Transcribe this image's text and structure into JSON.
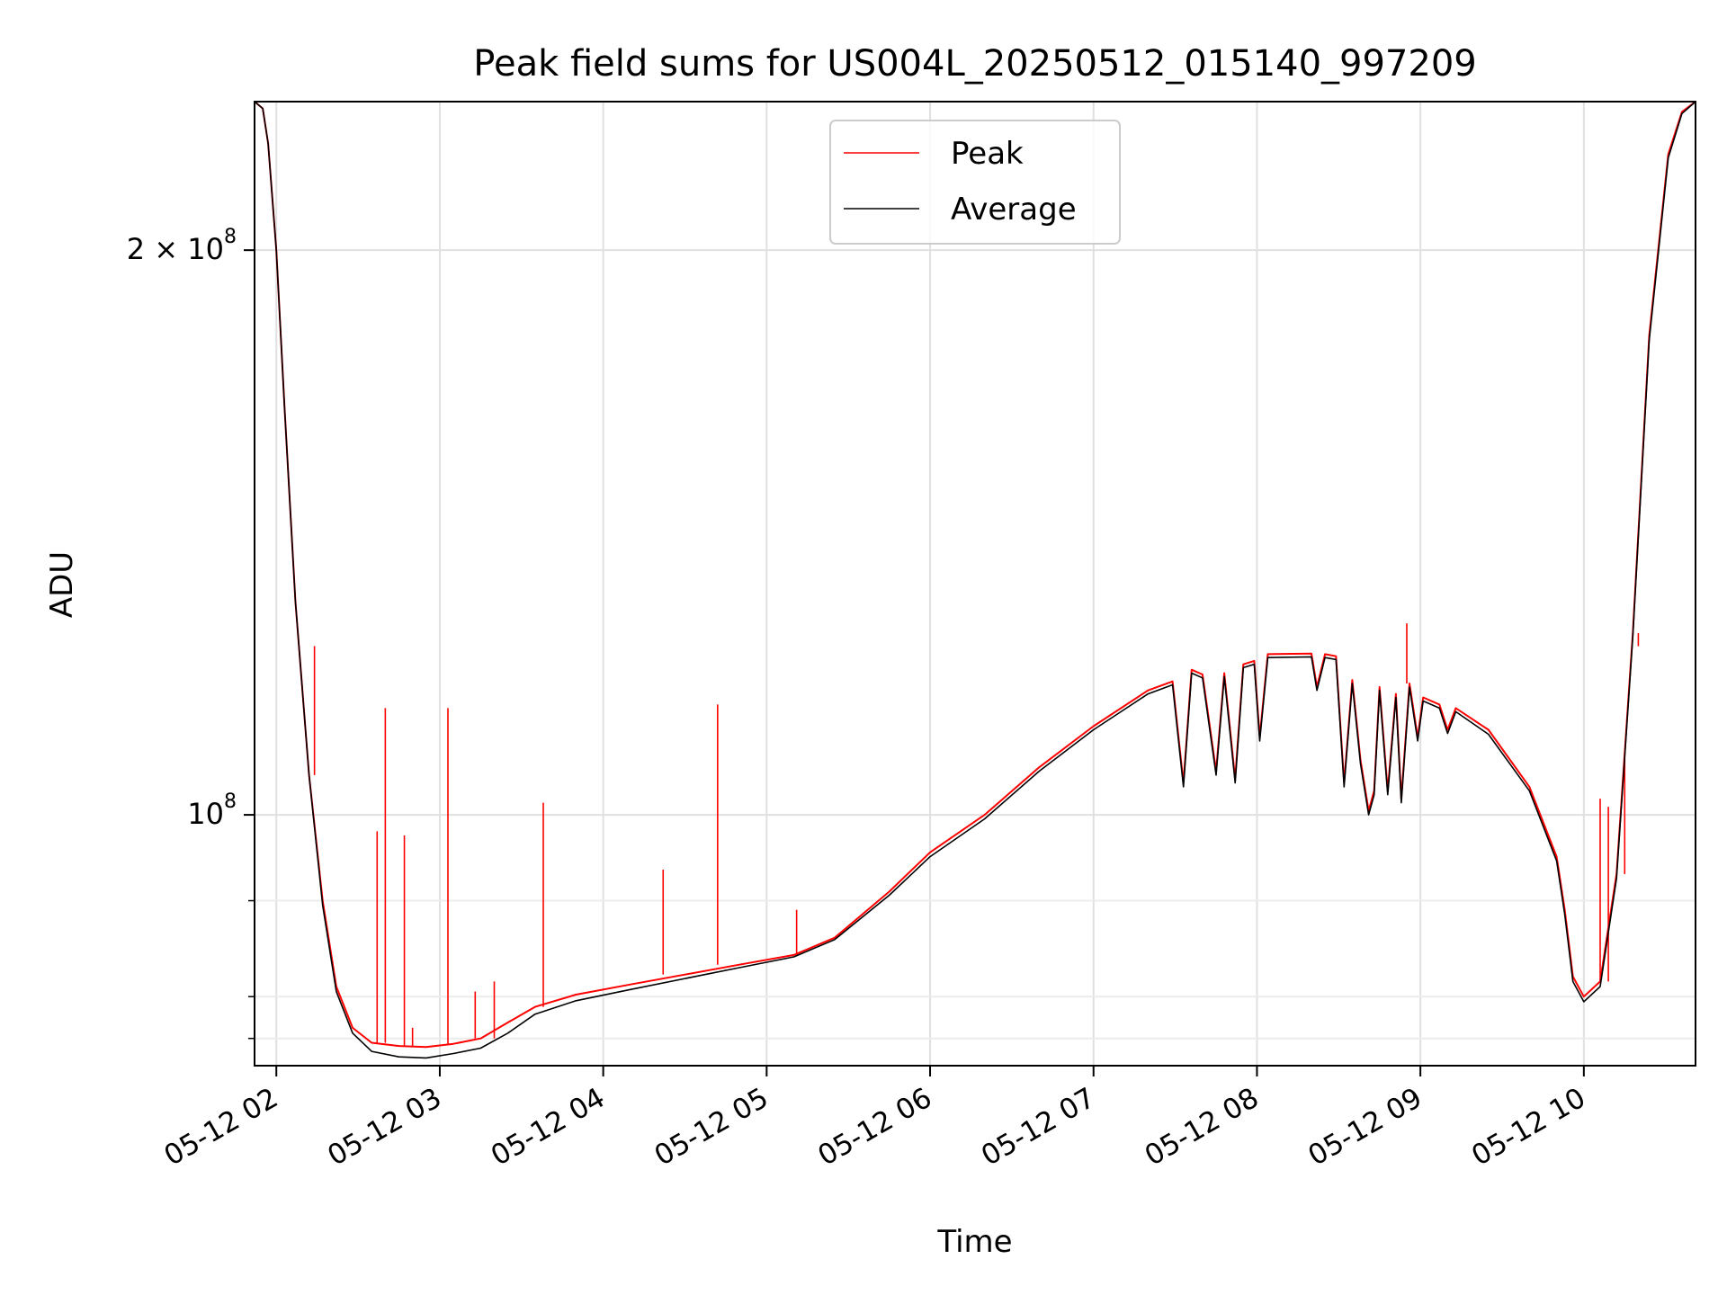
{
  "chart_data": {
    "type": "line",
    "title": "Peak field sums for US004L_20250512_015140_997209",
    "xlabel": "Time",
    "ylabel": "ADU",
    "y_scale": "log",
    "grid": true,
    "legend_position": "top-center",
    "xlim": [
      "2025-05-12 01:52",
      "2025-05-12 10:41"
    ],
    "ylim": [
      73500000,
      240000000
    ],
    "x_ticks": [
      {
        "value": "2025-05-12 02:00",
        "label": "05-12 02"
      },
      {
        "value": "2025-05-12 03:00",
        "label": "05-12 03"
      },
      {
        "value": "2025-05-12 04:00",
        "label": "05-12 04"
      },
      {
        "value": "2025-05-12 05:00",
        "label": "05-12 05"
      },
      {
        "value": "2025-05-12 06:00",
        "label": "05-12 06"
      },
      {
        "value": "2025-05-12 07:00",
        "label": "05-12 07"
      },
      {
        "value": "2025-05-12 08:00",
        "label": "05-12 08"
      },
      {
        "value": "2025-05-12 09:00",
        "label": "05-12 09"
      },
      {
        "value": "2025-05-12 10:00",
        "label": "05-12 10"
      }
    ],
    "y_major_ticks": [
      {
        "value": 100000000,
        "label": "10",
        "exp": "8"
      },
      {
        "value": 200000000,
        "label": "2 × 10",
        "exp": "8"
      }
    ],
    "y_minor_ticks": [
      76000000,
      80000000,
      90000000
    ],
    "series": [
      {
        "name": "Peak",
        "color": "#ff0000",
        "points": [
          [
            "2025-05-12 01:52",
            240000000
          ],
          [
            "2025-05-12 01:55",
            238000000
          ],
          [
            "2025-05-12 01:57",
            228000000
          ],
          [
            "2025-05-12 02:00",
            200000000
          ],
          [
            "2025-05-12 02:03",
            165000000
          ],
          [
            "2025-05-12 02:07",
            130000000
          ],
          [
            "2025-05-12 02:12",
            105000000
          ],
          [
            "2025-05-12 02:17",
            90000000
          ],
          [
            "2025-05-12 02:22",
            81000000
          ],
          [
            "2025-05-12 02:28",
            77000000
          ],
          [
            "2025-05-12 02:35",
            75600000
          ],
          [
            "2025-05-12 02:45",
            75300000
          ],
          [
            "2025-05-12 02:55",
            75200000
          ],
          [
            "2025-05-12 03:05",
            75500000
          ],
          [
            "2025-05-12 03:15",
            76000000
          ],
          [
            "2025-05-12 03:25",
            77500000
          ],
          [
            "2025-05-12 03:35",
            79000000
          ],
          [
            "2025-05-12 03:50",
            80200000
          ],
          [
            "2025-05-12 04:10",
            81200000
          ],
          [
            "2025-05-12 04:30",
            82200000
          ],
          [
            "2025-05-12 04:50",
            83200000
          ],
          [
            "2025-05-12 05:10",
            84200000
          ],
          [
            "2025-05-12 05:25",
            86000000
          ],
          [
            "2025-05-12 05:45",
            91000000
          ],
          [
            "2025-05-12 06:00",
            95500000
          ],
          [
            "2025-05-12 06:20",
            100000000
          ],
          [
            "2025-05-12 06:40",
            106000000
          ],
          [
            "2025-05-12 07:00",
            111500000
          ],
          [
            "2025-05-12 07:20",
            116500000
          ],
          [
            "2025-05-12 07:29",
            117800000
          ],
          [
            "2025-05-12 07:33",
            104000000
          ],
          [
            "2025-05-12 07:36",
            119500000
          ],
          [
            "2025-05-12 07:40",
            118800000
          ],
          [
            "2025-05-12 07:45",
            105500000
          ],
          [
            "2025-05-12 07:48",
            119000000
          ],
          [
            "2025-05-12 07:52",
            104500000
          ],
          [
            "2025-05-12 07:55",
            120300000
          ],
          [
            "2025-05-12 07:59",
            120800000
          ],
          [
            "2025-05-12 08:01",
            110000000
          ],
          [
            "2025-05-12 08:04",
            121800000
          ],
          [
            "2025-05-12 08:20",
            121900000
          ],
          [
            "2025-05-12 08:22",
            117000000
          ],
          [
            "2025-05-12 08:25",
            121800000
          ],
          [
            "2025-05-12 08:29",
            121500000
          ],
          [
            "2025-05-12 08:32",
            104000000
          ],
          [
            "2025-05-12 08:35",
            118000000
          ],
          [
            "2025-05-12 08:38",
            107000000
          ],
          [
            "2025-05-12 08:41",
            100500000
          ],
          [
            "2025-05-12 08:43",
            103000000
          ],
          [
            "2025-05-12 08:45",
            117000000
          ],
          [
            "2025-05-12 08:48",
            103000000
          ],
          [
            "2025-05-12 08:51",
            116000000
          ],
          [
            "2025-05-12 08:53",
            102000000
          ],
          [
            "2025-05-12 08:56",
            117500000
          ],
          [
            "2025-05-12 08:59",
            110000000
          ],
          [
            "2025-05-12 09:01",
            115500000
          ],
          [
            "2025-05-12 09:07",
            114500000
          ],
          [
            "2025-05-12 09:10",
            111000000
          ],
          [
            "2025-05-12 09:13",
            114000000
          ],
          [
            "2025-05-12 09:25",
            111000000
          ],
          [
            "2025-05-12 09:40",
            103500000
          ],
          [
            "2025-05-12 09:50",
            95000000
          ],
          [
            "2025-05-12 09:53",
            89000000
          ],
          [
            "2025-05-12 09:56",
            82000000
          ],
          [
            "2025-05-12 10:00",
            80000000
          ],
          [
            "2025-05-12 10:06",
            81500000
          ],
          [
            "2025-05-12 10:12",
            93000000
          ],
          [
            "2025-05-12 10:18",
            125000000
          ],
          [
            "2025-05-12 10:24",
            180000000
          ],
          [
            "2025-05-12 10:31",
            225000000
          ],
          [
            "2025-05-12 10:36",
            237000000
          ],
          [
            "2025-05-12 10:41",
            240000000
          ]
        ],
        "spikes": [
          [
            "2025-05-12 02:14",
            123000000
          ],
          [
            "2025-05-12 02:37",
            98000000
          ],
          [
            "2025-05-12 02:40",
            114000000
          ],
          [
            "2025-05-12 02:47",
            97500000
          ],
          [
            "2025-05-12 02:50",
            77000000
          ],
          [
            "2025-05-12 03:03",
            114000000
          ],
          [
            "2025-05-12 03:13",
            80500000
          ],
          [
            "2025-05-12 03:20",
            81500000
          ],
          [
            "2025-05-12 03:38",
            101500000
          ],
          [
            "2025-05-12 04:22",
            93500000
          ],
          [
            "2025-05-12 04:42",
            114500000
          ],
          [
            "2025-05-12 05:11",
            89000000
          ],
          [
            "2025-05-12 08:55",
            126500000
          ],
          [
            "2025-05-12 10:06",
            102000000
          ],
          [
            "2025-05-12 10:09",
            101000000
          ],
          [
            "2025-05-12 10:15",
            108000000
          ],
          [
            "2025-05-12 10:20",
            123000000
          ]
        ]
      },
      {
        "name": "Average",
        "color": "#000000",
        "points": [
          [
            "2025-05-12 01:52",
            240000000
          ],
          [
            "2025-05-12 01:55",
            238000000
          ],
          [
            "2025-05-12 01:57",
            228000000
          ],
          [
            "2025-05-12 02:00",
            200000000
          ],
          [
            "2025-05-12 02:03",
            165000000
          ],
          [
            "2025-05-12 02:07",
            130000000
          ],
          [
            "2025-05-12 02:12",
            105000000
          ],
          [
            "2025-05-12 02:17",
            89500000
          ],
          [
            "2025-05-12 02:22",
            80500000
          ],
          [
            "2025-05-12 02:28",
            76500000
          ],
          [
            "2025-05-12 02:35",
            74800000
          ],
          [
            "2025-05-12 02:45",
            74300000
          ],
          [
            "2025-05-12 02:55",
            74200000
          ],
          [
            "2025-05-12 03:05",
            74600000
          ],
          [
            "2025-05-12 03:15",
            75100000
          ],
          [
            "2025-05-12 03:25",
            76500000
          ],
          [
            "2025-05-12 03:35",
            78300000
          ],
          [
            "2025-05-12 03:50",
            79600000
          ],
          [
            "2025-05-12 04:10",
            80700000
          ],
          [
            "2025-05-12 04:30",
            81800000
          ],
          [
            "2025-05-12 04:50",
            82900000
          ],
          [
            "2025-05-12 05:10",
            84000000
          ],
          [
            "2025-05-12 05:25",
            85800000
          ],
          [
            "2025-05-12 05:45",
            90600000
          ],
          [
            "2025-05-12 06:00",
            95000000
          ],
          [
            "2025-05-12 06:20",
            99500000
          ],
          [
            "2025-05-12 06:40",
            105500000
          ],
          [
            "2025-05-12 07:00",
            111000000
          ],
          [
            "2025-05-12 07:20",
            116000000
          ],
          [
            "2025-05-12 07:29",
            117300000
          ],
          [
            "2025-05-12 07:33",
            103500000
          ],
          [
            "2025-05-12 07:36",
            119000000
          ],
          [
            "2025-05-12 07:40",
            118300000
          ],
          [
            "2025-05-12 07:45",
            105000000
          ],
          [
            "2025-05-12 07:48",
            118500000
          ],
          [
            "2025-05-12 07:52",
            104000000
          ],
          [
            "2025-05-12 07:55",
            119800000
          ],
          [
            "2025-05-12 07:59",
            120300000
          ],
          [
            "2025-05-12 08:01",
            109500000
          ],
          [
            "2025-05-12 08:04",
            121300000
          ],
          [
            "2025-05-12 08:20",
            121400000
          ],
          [
            "2025-05-12 08:22",
            116500000
          ],
          [
            "2025-05-12 08:25",
            121300000
          ],
          [
            "2025-05-12 08:29",
            121000000
          ],
          [
            "2025-05-12 08:32",
            103500000
          ],
          [
            "2025-05-12 08:35",
            117500000
          ],
          [
            "2025-05-12 08:38",
            106500000
          ],
          [
            "2025-05-12 08:41",
            100000000
          ],
          [
            "2025-05-12 08:43",
            102500000
          ],
          [
            "2025-05-12 08:45",
            116500000
          ],
          [
            "2025-05-12 08:48",
            102500000
          ],
          [
            "2025-05-12 08:51",
            115500000
          ],
          [
            "2025-05-12 08:53",
            101500000
          ],
          [
            "2025-05-12 08:56",
            117000000
          ],
          [
            "2025-05-12 08:59",
            109500000
          ],
          [
            "2025-05-12 09:01",
            115000000
          ],
          [
            "2025-05-12 09:07",
            114000000
          ],
          [
            "2025-05-12 09:10",
            110500000
          ],
          [
            "2025-05-12 09:13",
            113500000
          ],
          [
            "2025-05-12 09:25",
            110400000
          ],
          [
            "2025-05-12 09:40",
            103000000
          ],
          [
            "2025-05-12 09:50",
            94500000
          ],
          [
            "2025-05-12 09:53",
            88500000
          ],
          [
            "2025-05-12 09:56",
            81500000
          ],
          [
            "2025-05-12 10:00",
            79500000
          ],
          [
            "2025-05-12 10:06",
            81000000
          ],
          [
            "2025-05-12 10:12",
            92500000
          ],
          [
            "2025-05-12 10:18",
            124500000
          ],
          [
            "2025-05-12 10:24",
            179000000
          ],
          [
            "2025-05-12 10:31",
            224000000
          ],
          [
            "2025-05-12 10:36",
            236500000
          ],
          [
            "2025-05-12 10:41",
            240000000
          ]
        ]
      }
    ]
  }
}
